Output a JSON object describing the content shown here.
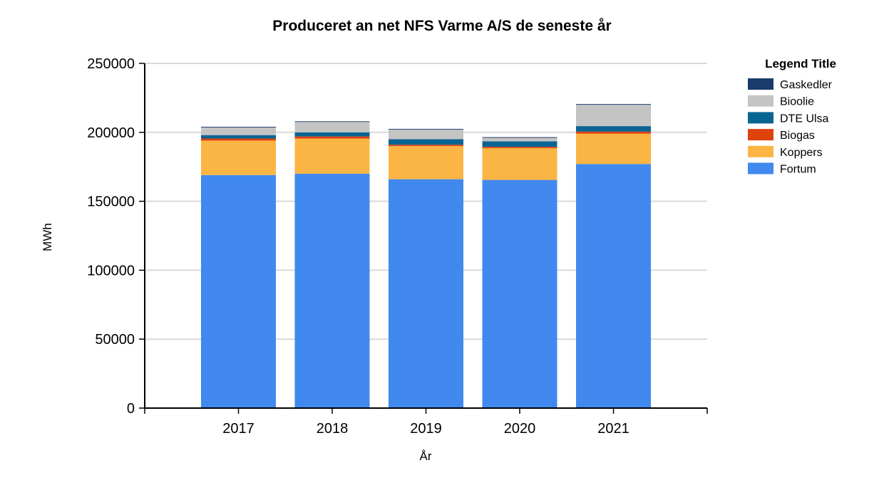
{
  "chart_data": {
    "type": "bar",
    "stacked": true,
    "title": "Produceret an net NFS Varme A/S de seneste år",
    "xlabel": "År",
    "ylabel": "MWh",
    "ylim": [
      0,
      250000
    ],
    "yticks": [
      "0",
      "50000",
      "100000",
      "150000",
      "200000",
      "250000"
    ],
    "grid": true,
    "legend_position": "top-right",
    "legend_title": "Legend Title",
    "categories": [
      "2017",
      "2018",
      "2019",
      "2020",
      "2021"
    ],
    "series": [
      {
        "name": "Fortum",
        "color": "#4189ee",
        "values": [
          169000,
          170000,
          166000,
          165500,
          177000
        ]
      },
      {
        "name": "Koppers",
        "color": "#fbb544",
        "values": [
          25000,
          25500,
          24000,
          23000,
          22000
        ]
      },
      {
        "name": "Biogas",
        "color": "#e0420e",
        "values": [
          1500,
          1500,
          1000,
          1000,
          1500
        ]
      },
      {
        "name": "DTE Ulsa",
        "color": "#0b6592",
        "values": [
          2500,
          3000,
          4000,
          4000,
          4000
        ]
      },
      {
        "name": "Bioolie",
        "color": "#c4c4c4",
        "values": [
          5500,
          7500,
          7000,
          2500,
          15500
        ]
      },
      {
        "name": "Gaskedler",
        "color": "#1a3a6b",
        "values": [
          500,
          500,
          500,
          500,
          500
        ]
      }
    ]
  }
}
